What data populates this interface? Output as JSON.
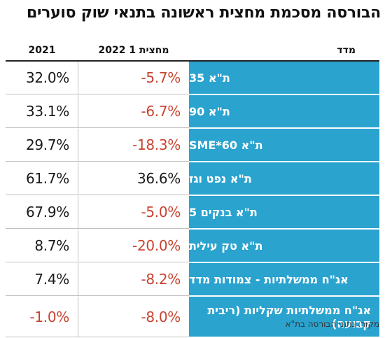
{
  "title": "הבורסה מסכמת מחצית ראשונה בתנאי שוק סוערים",
  "headers": {
    "index": "מדד",
    "h1_2022": "מחצית 1 2022",
    "y2021": "2021"
  },
  "rows": [
    {
      "name": "ת\"א 35",
      "h1_2022": "-5.7%",
      "y2021": "32.0%"
    },
    {
      "name": "ת\"א 90",
      "h1_2022": "-6.7%",
      "y2021": "33.1%"
    },
    {
      "name": "ת\"א SME*60",
      "h1_2022": "-18.3%",
      "y2021": "29.7%"
    },
    {
      "name": "ת\"א נפט וגז",
      "h1_2022": "36.6%",
      "y2021": "61.7%"
    },
    {
      "name": "ת\"א בנקים 5",
      "h1_2022": "-5.0%",
      "y2021": "67.9%"
    },
    {
      "name": "ת\"א טק עילית",
      "h1_2022": "-20.0%",
      "y2021": "8.7%"
    },
    {
      "name": "אג\"ח ממשלתיות - צמודות מדד",
      "h1_2022": "-8.2%",
      "y2021": "7.4%"
    },
    {
      "name": "אג\"ח ממשלתיות שקליות (ריבית קבועה)",
      "h1_2022": "-8.0%",
      "y2021": "-1.0%"
    }
  ],
  "source": "מקור: נתוני הבורסה בת\"א",
  "colors": {
    "name_bg": "#2aa3cf",
    "negative": "#c8432f",
    "positive": "#1a1a1a"
  }
}
